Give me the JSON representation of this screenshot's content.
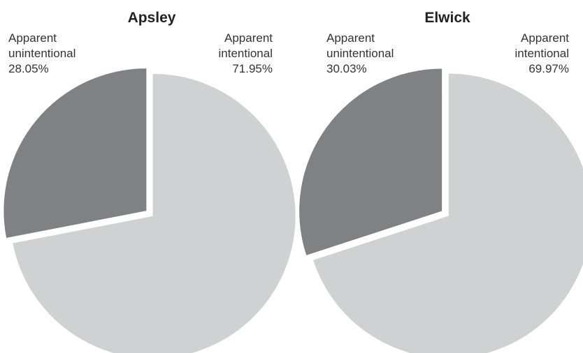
{
  "chart_data": [
    {
      "type": "pie",
      "title": "Apsley",
      "slices": [
        {
          "label_lines": [
            "Apparent",
            "intentional"
          ],
          "value": 71.95,
          "value_label": "71.95%",
          "color": "#d0d1d3"
        },
        {
          "label_lines": [
            "Apparent",
            "unintentional"
          ],
          "value": 28.05,
          "value_label": "28.05%",
          "color": "#808184"
        }
      ]
    },
    {
      "type": "pie",
      "title": "Elwick",
      "slices": [
        {
          "label_lines": [
            "Apparent",
            "intentional"
          ],
          "value": 69.97,
          "value_label": "69.97%",
          "color": "#d0d1d3"
        },
        {
          "label_lines": [
            "Apparent",
            "unintentional"
          ],
          "value": 30.03,
          "value_label": "30.03%",
          "color": "#808184"
        }
      ]
    }
  ]
}
